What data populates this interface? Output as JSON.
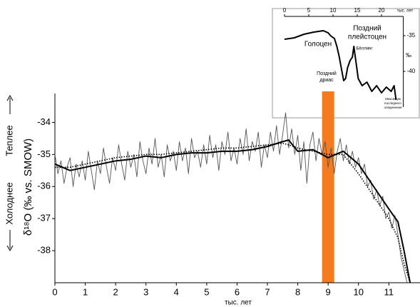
{
  "chart_data": [
    {
      "type": "line",
      "xlabel": "тыс. лет",
      "ylabel": "δ¹⁸O (‰ vs. SMOW)",
      "warmer": "Теплее",
      "colder": "Холоднее",
      "xlim": [
        0,
        12.05
      ],
      "ylim": [
        -39,
        -33.1
      ],
      "xticks": [
        0,
        1,
        2,
        3,
        4,
        5,
        6,
        7,
        8,
        9,
        10,
        11
      ],
      "yticks": [
        -34,
        -35,
        -36,
        -37,
        -38
      ],
      "xaxis": "bottom",
      "yaxis": "left",
      "highlight": {
        "x": [
          8.8,
          9.2
        ],
        "color": "#f47b20"
      },
      "series": [
        {
          "color": "#555555",
          "style": "thin",
          "x": [
            0,
            0.1,
            0.2,
            0.3,
            0.4,
            0.5,
            0.6,
            0.7,
            0.8,
            0.9,
            1,
            1.1,
            1.2,
            1.3,
            1.4,
            1.5,
            1.6,
            1.7,
            1.8,
            1.9,
            2,
            2.1,
            2.2,
            2.3,
            2.4,
            2.5,
            2.6,
            2.7,
            2.8,
            2.9,
            3,
            3.1,
            3.2,
            3.3,
            3.4,
            3.5,
            3.6,
            3.7,
            3.8,
            3.9,
            4,
            4.1,
            4.2,
            4.3,
            4.4,
            4.5,
            4.6,
            4.7,
            4.8,
            4.9,
            5,
            5.1,
            5.2,
            5.3,
            5.4,
            5.5,
            5.6,
            5.7,
            5.8,
            5.9,
            6,
            6.1,
            6.2,
            6.3,
            6.4,
            6.5,
            6.6,
            6.7,
            6.8,
            6.9,
            7,
            7.1,
            7.2,
            7.3,
            7.4,
            7.5,
            7.6,
            7.7,
            7.8,
            7.9,
            8,
            8.1,
            8.2,
            8.3,
            8.4,
            8.5,
            8.6,
            8.7,
            8.8,
            8.9,
            9,
            9.1,
            9.2,
            9.3,
            9.4,
            9.5,
            9.6,
            9.7,
            9.8,
            9.9,
            10,
            10.1,
            10.2,
            10.3,
            10.4,
            10.5,
            10.6,
            10.7,
            10.8,
            10.9,
            11,
            11.1,
            11.2,
            11.3,
            11.4,
            11.5,
            11.6
          ],
          "values": [
            -35.0,
            -35.6,
            -35.2,
            -35.9,
            -35.4,
            -35.1,
            -36.0,
            -35.3,
            -35.7,
            -35.2,
            -35.8,
            -34.9,
            -35.5,
            -36.1,
            -35.2,
            -35.6,
            -34.8,
            -35.4,
            -35.9,
            -35.1,
            -35.5,
            -34.7,
            -35.3,
            -35.8,
            -34.9,
            -35.4,
            -35.0,
            -35.7,
            -34.6,
            -35.2,
            -35.6,
            -34.8,
            -35.3,
            -34.5,
            -35.4,
            -35.0,
            -35.7,
            -34.7,
            -35.2,
            -34.9,
            -35.5,
            -34.6,
            -35.2,
            -34.8,
            -35.6,
            -34.5,
            -35.1,
            -34.9,
            -35.4,
            -34.7,
            -35.3,
            -34.4,
            -35.1,
            -34.7,
            -35.5,
            -34.6,
            -35.0,
            -34.3,
            -35.2,
            -34.8,
            -35.3,
            -34.5,
            -35.0,
            -34.2,
            -35.2,
            -34.6,
            -34.9,
            -34.3,
            -35.4,
            -34.7,
            -35.1,
            -34.3,
            -34.9,
            -34.1,
            -35.0,
            -34.4,
            -33.7,
            -34.8,
            -34.2,
            -35.0,
            -34.4,
            -35.5,
            -34.6,
            -35.9,
            -34.7,
            -34.3,
            -35.2,
            -34.5,
            -35.0,
            -34.6,
            -35.4,
            -34.8,
            -35.6,
            -34.9,
            -34.5,
            -35.2,
            -34.7,
            -35.3,
            -34.9,
            -35.4,
            -35.1,
            -35.6,
            -35.3,
            -36.0,
            -35.8,
            -36.4,
            -36.1,
            -36.6,
            -36.3,
            -37.0,
            -36.8,
            -37.3,
            -36.9,
            -37.5,
            -38.2,
            -38.6,
            -39.0
          ]
        },
        {
          "color": "#000000",
          "style": "thick",
          "x": [
            0,
            0.5,
            1,
            1.5,
            2,
            2.5,
            3,
            3.5,
            4,
            4.5,
            5,
            5.5,
            6,
            6.5,
            7,
            7.5,
            7.7,
            8,
            8.5,
            9,
            9.5,
            10,
            10.5,
            11,
            11.3,
            11.5,
            11.7
          ],
          "values": [
            -35.3,
            -35.5,
            -35.4,
            -35.3,
            -35.2,
            -35.15,
            -35.05,
            -35.1,
            -35.0,
            -34.95,
            -34.95,
            -34.9,
            -34.9,
            -34.85,
            -34.75,
            -34.6,
            -34.55,
            -34.9,
            -34.85,
            -35.1,
            -34.9,
            -35.3,
            -36.0,
            -36.7,
            -37.1,
            -38.0,
            -39.0
          ]
        },
        {
          "color": "#000000",
          "style": "dotted",
          "x": [
            0,
            0.5,
            1,
            1.5,
            2,
            2.5,
            3,
            3.5,
            4,
            4.5,
            5,
            5.5,
            6,
            6.5,
            7,
            7.5,
            7.7,
            8,
            8.5,
            9,
            9.5,
            10,
            10.5,
            11,
            11.3,
            11.5,
            11.7
          ],
          "values": [
            -35.4,
            -35.4,
            -35.3,
            -35.2,
            -35.1,
            -35.05,
            -35.0,
            -35.0,
            -34.95,
            -34.9,
            -34.85,
            -34.8,
            -34.8,
            -34.75,
            -34.7,
            -34.65,
            -34.7,
            -34.8,
            -34.9,
            -35.0,
            -35.0,
            -35.6,
            -36.3,
            -37.0,
            -37.6,
            -38.4,
            -39.0
          ]
        }
      ]
    },
    {
      "type": "line",
      "xlabel": "тыс. лет",
      "ylabel": "‰",
      "xlim": [
        0,
        24.5
      ],
      "ylim": [
        -45,
        -32.3
      ],
      "xticks": [
        0,
        5,
        10,
        15,
        20
      ],
      "yticks": [
        -35,
        -40
      ],
      "xaxis": "top",
      "yaxis": "right",
      "annotations": [
        "Голоцен",
        "Поздний",
        "плейстоцен",
        "Бёллинг",
        "Поздний",
        "дриас",
        "Максимум",
        "последнего",
        "оледенения"
      ],
      "series": [
        {
          "color": "#000000",
          "style": "thick",
          "x": [
            0,
            2,
            4,
            6,
            8,
            9,
            9.5,
            10.3,
            10.8,
            11.3,
            11.7,
            12.2,
            12.6,
            13,
            13.5,
            14,
            14.3,
            14.7,
            15.2,
            16,
            17,
            18,
            19,
            20,
            21,
            22,
            22.6,
            23
          ],
          "values": [
            -35.5,
            -35.3,
            -34.8,
            -34.5,
            -34.3,
            -34.6,
            -35.0,
            -35.4,
            -36.5,
            -38.0,
            -39.5,
            -41.3,
            -41.0,
            -39.5,
            -38.5,
            -38.0,
            -36.5,
            -38.5,
            -41.0,
            -42.0,
            -41.5,
            -42.8,
            -42.0,
            -43.0,
            -42.2,
            -42.8,
            -42.0,
            -44.0
          ]
        }
      ]
    }
  ]
}
